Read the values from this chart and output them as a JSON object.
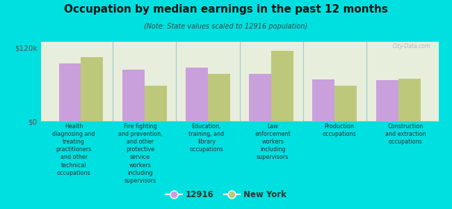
{
  "title": "Occupation by median earnings in the past 12 months",
  "subtitle": "(Note: State values scaled to 12916 population)",
  "background_color": "#00e0e0",
  "plot_bg_color": "#e8eedc",
  "categories": [
    "Health\ndiagnosing and\ntreating\npractitioners\nand other\ntechnical\noccupations",
    "Fire fighting\nand prevention,\nand other\nprotective\nservice\nworkers\nincluding\nsupervisors",
    "Education,\ntraining, and\nlibrary\noccupations",
    "Law\nenforcement\nworkers\nincluding\nsupervisors",
    "Production\noccupations",
    "Construction\nand extraction\noccupations"
  ],
  "values_12916": [
    95000,
    84000,
    88000,
    78000,
    68000,
    67000
  ],
  "values_ny": [
    105000,
    58000,
    78000,
    115000,
    58000,
    70000
  ],
  "color_12916": "#c9a0dc",
  "color_ny": "#bec87a",
  "ylim": [
    0,
    130000
  ],
  "yticks": [
    0,
    120000
  ],
  "ytick_labels": [
    "$0",
    "$120k"
  ],
  "legend_label_12916": "12916",
  "legend_label_ny": "New York",
  "bar_width": 0.35,
  "separator_color": "#99cccc",
  "watermark": "City-Data.com"
}
